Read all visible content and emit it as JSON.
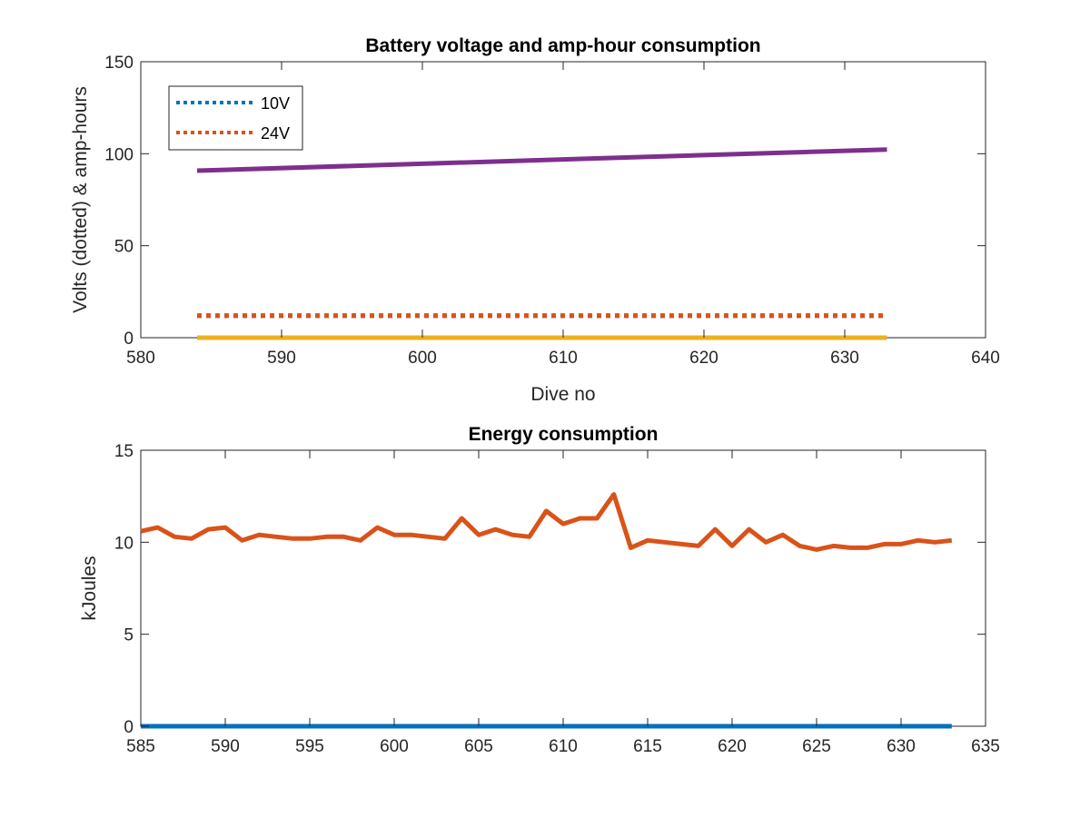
{
  "chart_data": [
    {
      "type": "line",
      "title": "Battery voltage and amp-hour consumption",
      "xlabel": "Dive no",
      "ylabel": "Volts (dotted) & amp-hours",
      "xlim": [
        580,
        640
      ],
      "ylim": [
        0,
        150
      ],
      "xticks": [
        580,
        590,
        600,
        610,
        620,
        630,
        640
      ],
      "yticks": [
        0,
        50,
        100,
        150
      ],
      "legend_placement": "top-left",
      "grid": false,
      "series": [
        {
          "name": "10V",
          "style": "dotted",
          "color": "#0072BD",
          "x": [
            584,
            633
          ],
          "y": [
            12,
            12
          ]
        },
        {
          "name": "24V",
          "style": "dotted",
          "color": "#D95319",
          "x": [
            584,
            633
          ],
          "y": [
            12,
            12
          ]
        },
        {
          "style": "solid",
          "color": "#EDB120",
          "x": [
            584,
            633
          ],
          "y": [
            0,
            0
          ]
        },
        {
          "style": "solid",
          "color": "#7E2F8E",
          "x": [
            584,
            633
          ],
          "y": [
            90.8,
            102.3
          ]
        }
      ]
    },
    {
      "type": "line",
      "title": "Energy consumption",
      "xlabel": "",
      "ylabel": "kJoules",
      "xlim": [
        585,
        635
      ],
      "ylim": [
        0,
        15
      ],
      "xticks": [
        585,
        590,
        595,
        600,
        605,
        610,
        615,
        620,
        625,
        630,
        635
      ],
      "yticks": [
        0,
        5,
        10,
        15
      ],
      "grid": false,
      "series": [
        {
          "style": "solid",
          "color": "#0072BD",
          "x": [
            585,
            633
          ],
          "y": [
            0,
            0
          ]
        },
        {
          "style": "solid",
          "color": "#D95319",
          "x": [
            585,
            586,
            587,
            588,
            589,
            590,
            591,
            592,
            593,
            594,
            595,
            596,
            597,
            598,
            599,
            600,
            601,
            602,
            603,
            604,
            605,
            606,
            607,
            608,
            609,
            610,
            611,
            612,
            613,
            614,
            615,
            616,
            617,
            618,
            619,
            620,
            621,
            622,
            623,
            624,
            625,
            626,
            627,
            628,
            629,
            630,
            631,
            632,
            633
          ],
          "y": [
            10.6,
            10.8,
            10.3,
            10.2,
            10.7,
            10.8,
            10.1,
            10.4,
            10.3,
            10.2,
            10.2,
            10.3,
            10.3,
            10.1,
            10.8,
            10.4,
            10.4,
            10.3,
            10.2,
            11.3,
            10.4,
            10.7,
            10.4,
            10.3,
            11.7,
            11.0,
            11.3,
            11.3,
            12.6,
            9.7,
            10.1,
            10.0,
            9.9,
            9.8,
            10.7,
            9.8,
            10.7,
            10.0,
            10.4,
            9.8,
            9.6,
            9.8,
            9.7,
            9.7,
            9.9,
            9.9,
            10.1,
            10.0,
            10.1
          ]
        }
      ]
    }
  ]
}
